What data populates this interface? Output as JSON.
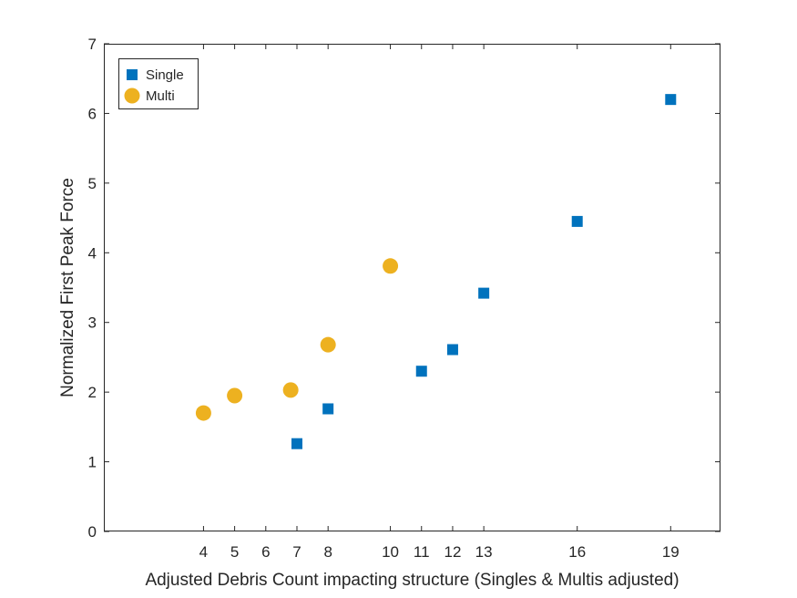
{
  "chart_data": {
    "type": "scatter",
    "title": "",
    "xlabel": "Adjusted Debris Count impacting structure (Singles & Multis adjusted)",
    "ylabel": "Normalized First Peak Force",
    "xlim": [
      0.8,
      20.6
    ],
    "ylim": [
      0,
      7
    ],
    "x_ticks": [
      4,
      5,
      6,
      7,
      8,
      10,
      11,
      12,
      13,
      16,
      19
    ],
    "x_tick_labels": [
      "4",
      "5",
      "6",
      "7",
      "8",
      "10",
      "11",
      "12",
      "13",
      "16",
      "19"
    ],
    "y_ticks": [
      0,
      1,
      2,
      3,
      4,
      5,
      6,
      7
    ],
    "y_tick_labels": [
      "0",
      "1",
      "2",
      "3",
      "4",
      "5",
      "6",
      "7"
    ],
    "grid": false,
    "legend_position": "top-left",
    "series": [
      {
        "name": "Single",
        "marker": "square",
        "color": "#0072bd",
        "points": [
          {
            "x": 7,
            "y": 1.26
          },
          {
            "x": 8,
            "y": 1.76
          },
          {
            "x": 11,
            "y": 2.3
          },
          {
            "x": 12,
            "y": 2.61
          },
          {
            "x": 13,
            "y": 3.42
          },
          {
            "x": 16,
            "y": 4.45
          },
          {
            "x": 19,
            "y": 6.2
          }
        ]
      },
      {
        "name": "Multi",
        "marker": "circle",
        "color": "#edb120",
        "points": [
          {
            "x": 4,
            "y": 1.7
          },
          {
            "x": 5,
            "y": 1.95
          },
          {
            "x": 6.8,
            "y": 2.03
          },
          {
            "x": 8,
            "y": 2.68
          },
          {
            "x": 10,
            "y": 3.81
          }
        ]
      }
    ]
  }
}
